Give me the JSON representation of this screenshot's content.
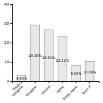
{
  "chart_data": {
    "type": "bar",
    "categories": [
      "Totally\nDisagree",
      "Disagree",
      "Neutral",
      "Agree",
      "Totally Agree",
      "Don't K"
    ],
    "values": [
      3.03,
      29.15,
      26.61,
      23.12,
      8.0,
      10.09
    ],
    "value_labels": [
      "3.03%",
      "29.15%",
      "26.61%",
      "23.12%",
      "8.00%",
      "10.09%"
    ],
    "data_labels": true,
    "color": "#e8e8e8",
    "ylim": [
      0,
      40
    ],
    "yticks": [
      0,
      10,
      20,
      30,
      40
    ],
    "grid": false
  }
}
